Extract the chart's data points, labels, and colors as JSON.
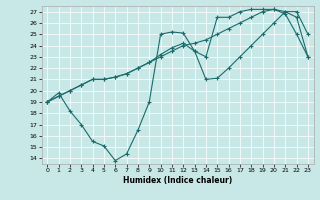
{
  "xlabel": "Humidex (Indice chaleur)",
  "bg_color": "#c8e8e8",
  "line_color": "#1a6b6b",
  "xlim": [
    -0.5,
    23.5
  ],
  "ylim": [
    13.5,
    27.5
  ],
  "xticks": [
    0,
    1,
    2,
    3,
    4,
    5,
    6,
    7,
    8,
    9,
    10,
    11,
    12,
    13,
    14,
    15,
    16,
    17,
    18,
    19,
    20,
    21,
    22,
    23
  ],
  "yticks": [
    14,
    15,
    16,
    17,
    18,
    19,
    20,
    21,
    22,
    23,
    24,
    25,
    26,
    27
  ],
  "line1_x": [
    0,
    1,
    2,
    3,
    4,
    5,
    6,
    7,
    8,
    9,
    10,
    11,
    12,
    13,
    14,
    15,
    16,
    17,
    18,
    19,
    20,
    21,
    22,
    23
  ],
  "line1_y": [
    19.0,
    19.8,
    18.2,
    17.0,
    15.5,
    15.1,
    13.8,
    14.4,
    16.5,
    19.0,
    25.0,
    25.2,
    25.1,
    23.5,
    21.0,
    21.1,
    22.0,
    23.0,
    24.0,
    25.0,
    26.0,
    27.0,
    27.0,
    25.0
  ],
  "line2_x": [
    0,
    1,
    2,
    3,
    4,
    5,
    6,
    7,
    8,
    9,
    10,
    11,
    12,
    13,
    14,
    15,
    16,
    17,
    18,
    19,
    20,
    21,
    22,
    23
  ],
  "line2_y": [
    19.0,
    19.5,
    20.0,
    20.5,
    21.0,
    21.0,
    21.2,
    21.5,
    22.0,
    22.5,
    23.0,
    23.5,
    24.0,
    24.2,
    24.5,
    25.0,
    25.5,
    26.0,
    26.5,
    27.0,
    27.2,
    27.0,
    26.5,
    23.0
  ],
  "line3_x": [
    0,
    1,
    2,
    3,
    4,
    5,
    6,
    7,
    8,
    9,
    10,
    11,
    12,
    13,
    14,
    15,
    16,
    17,
    18,
    19,
    20,
    21,
    22,
    23
  ],
  "line3_y": [
    19.0,
    19.5,
    20.0,
    20.5,
    21.0,
    21.0,
    21.2,
    21.5,
    22.0,
    22.5,
    23.2,
    23.8,
    24.2,
    23.5,
    23.0,
    26.5,
    26.5,
    27.0,
    27.2,
    27.2,
    27.2,
    26.8,
    25.0,
    23.0
  ],
  "marker": "+"
}
